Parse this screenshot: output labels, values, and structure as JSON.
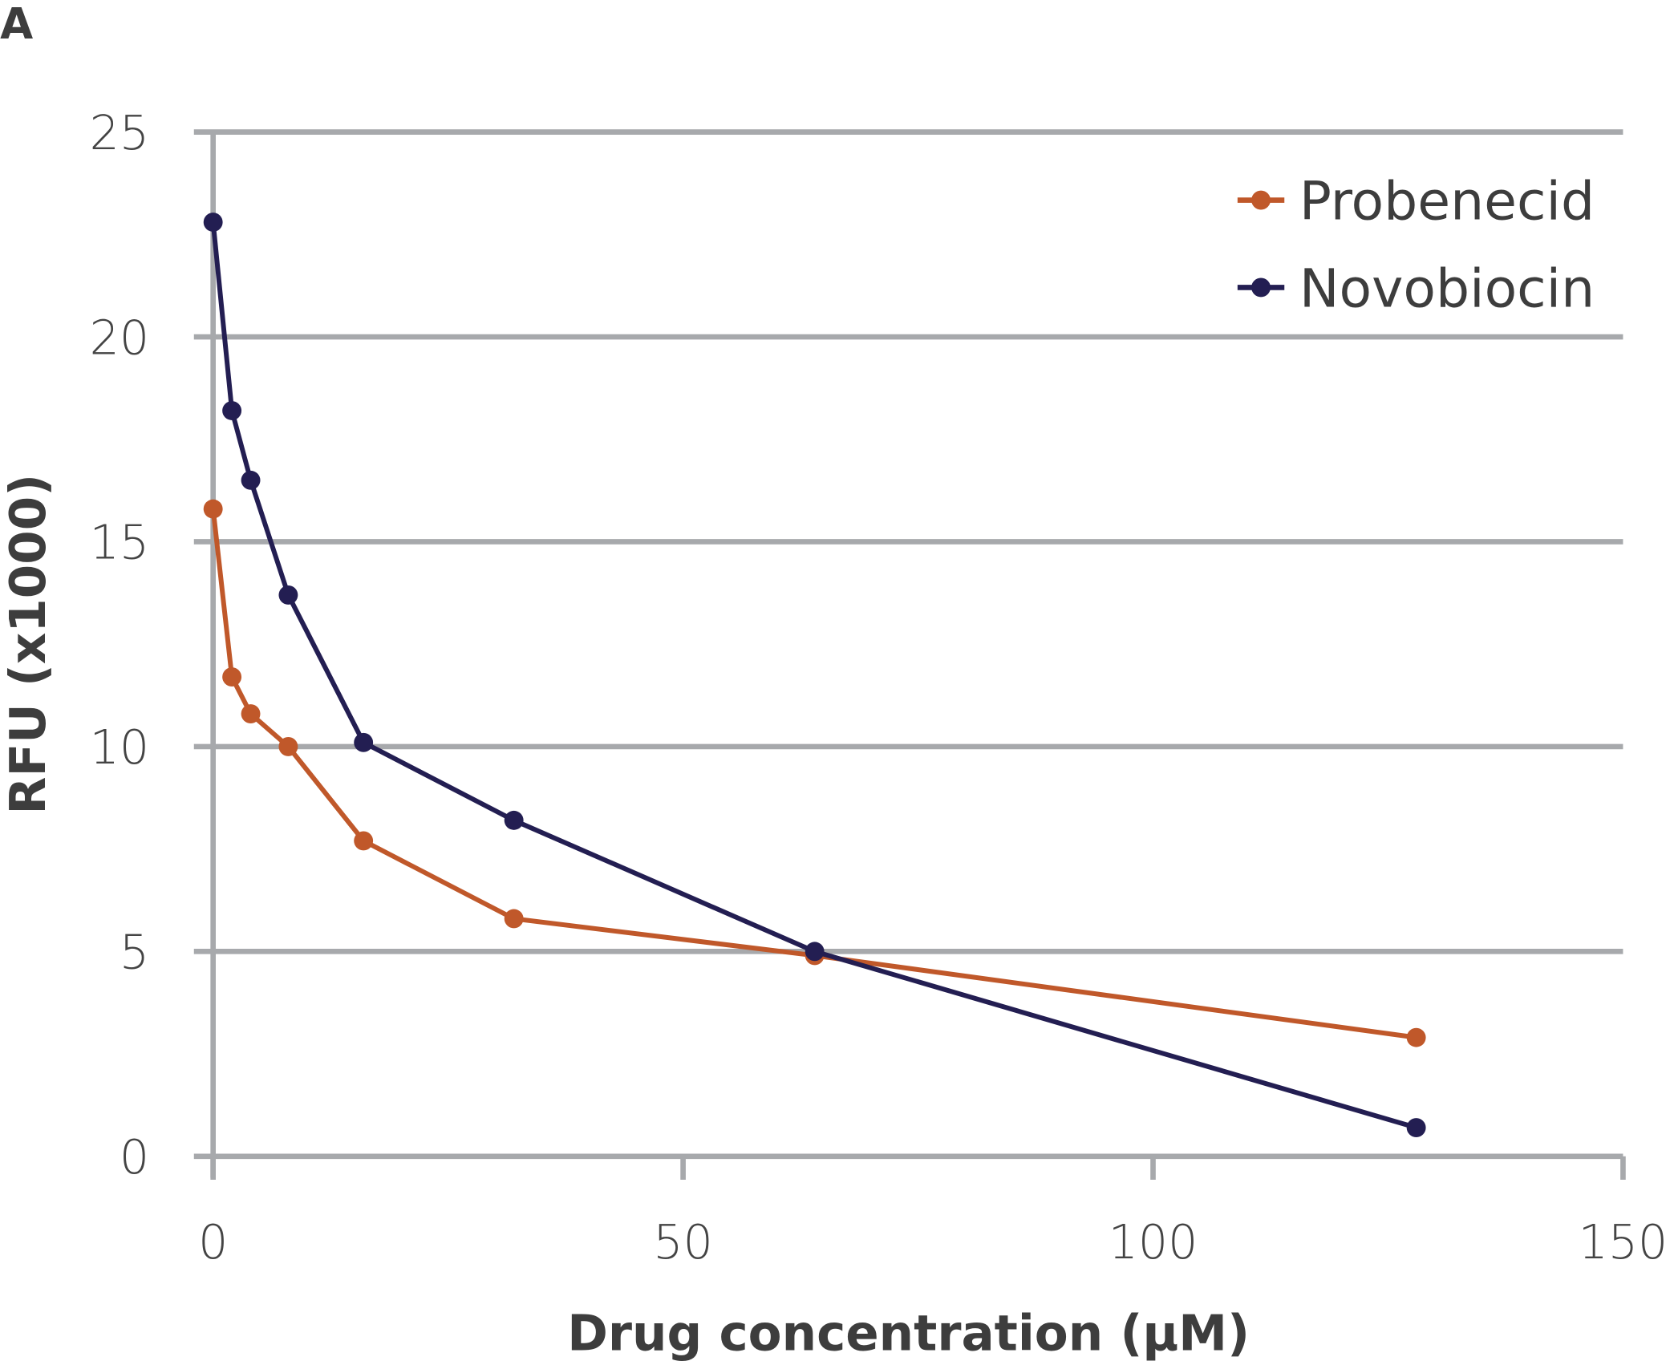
{
  "panel_label": "A",
  "chart_data": {
    "type": "line",
    "title": "",
    "xlabel": "Drug concentration (μM)",
    "ylabel": "RFU (x1000)",
    "xlim": [
      0,
      150
    ],
    "ylim": [
      0,
      25
    ],
    "xticks": [
      "0",
      "50",
      "100",
      "150"
    ],
    "yticks": [
      "0",
      "5",
      "10",
      "15",
      "20",
      "25"
    ],
    "grid": "horizontal",
    "legend_position": "top-right",
    "x": [
      0,
      2,
      4,
      8,
      16,
      32,
      64,
      128
    ],
    "series": [
      {
        "name": "Probenecid",
        "color": "#C0582A",
        "values": [
          15.8,
          11.7,
          10.8,
          10.0,
          7.7,
          5.8,
          4.9,
          2.9
        ]
      },
      {
        "name": "Novobiocin",
        "color": "#231E52",
        "values": [
          22.8,
          18.2,
          16.5,
          13.7,
          10.1,
          8.2,
          5.0,
          0.7
        ]
      }
    ],
    "grid_color": "#A7A9AC"
  }
}
